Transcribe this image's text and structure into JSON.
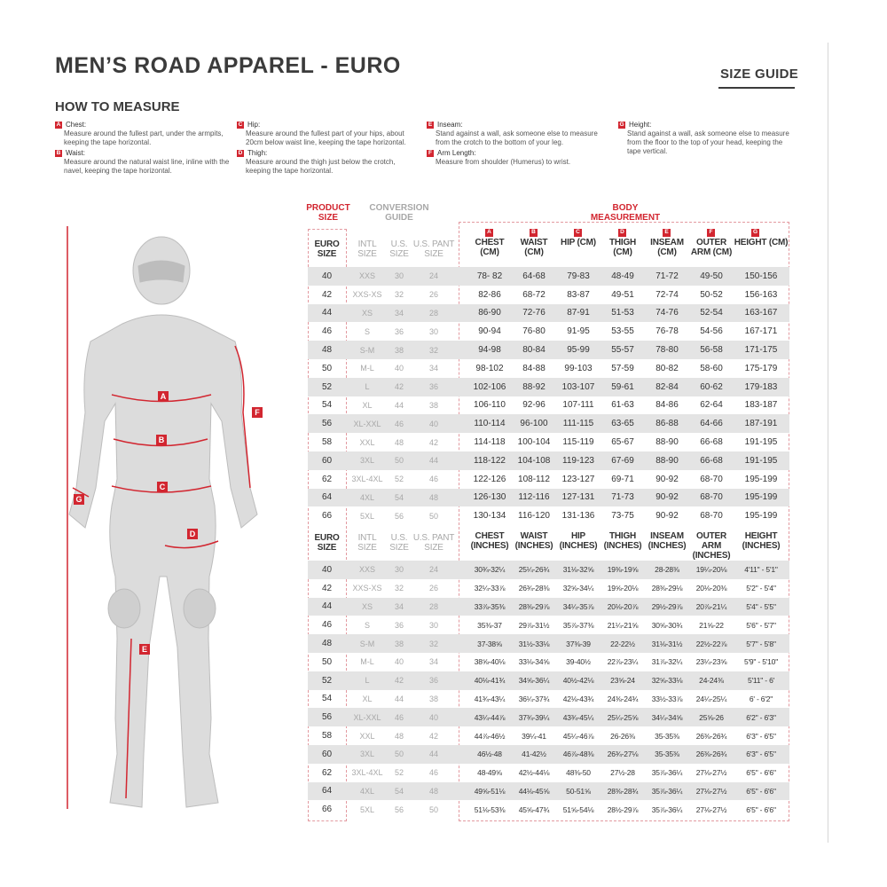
{
  "header": {
    "title": "MEN’S ROAD APPAREL - EURO",
    "size_guide": "SIZE GUIDE"
  },
  "how_to": {
    "title": "HOW TO MEASURE",
    "items": [
      {
        "letter": "A",
        "label": "Chest:",
        "text": "Measure around the fullest part, under the armpits, keeping the tape horizontal."
      },
      {
        "letter": "B",
        "label": "Waist:",
        "text": "Measure around the natural waist line, inline with the navel, keeping the tape horizontal."
      },
      {
        "letter": "C",
        "label": "Hip:",
        "text": "Measure around the fullest part of your hips, about 20cm below waist line, keeping the tape horizontal."
      },
      {
        "letter": "D",
        "label": "Thigh:",
        "text": "Measure around the thigh just below the crotch, keeping the tape horizontal."
      },
      {
        "letter": "E",
        "label": "Inseam:",
        "text": "Stand against a wall, ask someone else to measure from the crotch to the bottom of your leg."
      },
      {
        "letter": "F",
        "label": "Arm Length:",
        "text": "Measure from shoulder (Humerus) to wrist."
      },
      {
        "letter": "G",
        "label": "Height:",
        "text": "Stand against a wall, ask someone else to measure from the floor to the top of your head, keeping the tape vertical."
      }
    ]
  },
  "table": {
    "group_headers": {
      "product": "PRODUCT SIZE",
      "conversion": "CONVERSION GUIDE",
      "body": "BODY MEASUREMENT"
    },
    "accent_color": "#d22630",
    "cm_headers": [
      "EURO SIZE",
      "INTL SIZE",
      "U.S. SIZE",
      "U.S. PANT SIZE",
      "CHEST (CM)",
      "WAIST (CM)",
      "HIP (CM)",
      "THIGH (CM)",
      "INSEAM (CM)",
      "OUTER ARM (CM)",
      "HEIGHT (CM)"
    ],
    "in_headers": [
      "EURO SIZE",
      "INTL SIZE",
      "U.S. SIZE",
      "U.S. PANT SIZE",
      "CHEST (INCHES)",
      "WAIST (INCHES)",
      "HIP (INCHES)",
      "THIGH (INCHES)",
      "INSEAM (INCHES)",
      "OUTER ARM (INCHES)",
      "HEIGHT (INCHES)"
    ],
    "letters": [
      "A",
      "B",
      "C",
      "D",
      "E",
      "F",
      "G"
    ],
    "cm_rows": [
      [
        "40",
        "XXS",
        "30",
        "24",
        "78- 82",
        "64-68",
        "79-83",
        "48-49",
        "71-72",
        "49-50",
        "150-156"
      ],
      [
        "42",
        "XXS-XS",
        "32",
        "26",
        "82-86",
        "68-72",
        "83-87",
        "49-51",
        "72-74",
        "50-52",
        "156-163"
      ],
      [
        "44",
        "XS",
        "34",
        "28",
        "86-90",
        "72-76",
        "87-91",
        "51-53",
        "74-76",
        "52-54",
        "163-167"
      ],
      [
        "46",
        "S",
        "36",
        "30",
        "90-94",
        "76-80",
        "91-95",
        "53-55",
        "76-78",
        "54-56",
        "167-171"
      ],
      [
        "48",
        "S-M",
        "38",
        "32",
        "94-98",
        "80-84",
        "95-99",
        "55-57",
        "78-80",
        "56-58",
        "171-175"
      ],
      [
        "50",
        "M-L",
        "40",
        "34",
        "98-102",
        "84-88",
        "99-103",
        "57-59",
        "80-82",
        "58-60",
        "175-179"
      ],
      [
        "52",
        "L",
        "42",
        "36",
        "102-106",
        "88-92",
        "103-107",
        "59-61",
        "82-84",
        "60-62",
        "179-183"
      ],
      [
        "54",
        "XL",
        "44",
        "38",
        "106-110",
        "92-96",
        "107-111",
        "61-63",
        "84-86",
        "62-64",
        "183-187"
      ],
      [
        "56",
        "XL-XXL",
        "46",
        "40",
        "110-114",
        "96-100",
        "111-115",
        "63-65",
        "86-88",
        "64-66",
        "187-191"
      ],
      [
        "58",
        "XXL",
        "48",
        "42",
        "114-118",
        "100-104",
        "115-119",
        "65-67",
        "88-90",
        "66-68",
        "191-195"
      ],
      [
        "60",
        "3XL",
        "50",
        "44",
        "118-122",
        "104-108",
        "119-123",
        "67-69",
        "88-90",
        "66-68",
        "191-195"
      ],
      [
        "62",
        "3XL-4XL",
        "52",
        "46",
        "122-126",
        "108-112",
        "123-127",
        "69-71",
        "90-92",
        "68-70",
        "195-199"
      ],
      [
        "64",
        "4XL",
        "54",
        "48",
        "126-130",
        "112-116",
        "127-131",
        "71-73",
        "90-92",
        "68-70",
        "195-199"
      ],
      [
        "66",
        "5XL",
        "56",
        "50",
        "130-134",
        "116-120",
        "131-136",
        "73-75",
        "90-92",
        "68-70",
        "195-199"
      ]
    ],
    "in_rows": [
      [
        "40",
        "XXS",
        "30",
        "24",
        "30¾-32¼",
        "25¼-26¾",
        "31⅛-32⅝",
        "19⅜-19⅝",
        "28-28⅜",
        "19¼-20⅛",
        "4'11\" - 5'1\""
      ],
      [
        "42",
        "XXS-XS",
        "32",
        "26",
        "32¼-33⅞",
        "26¾-28⅜",
        "32⅝-34¼",
        "19⅝-20⅛",
        "28⅜-29⅛",
        "20⅛-20⅜",
        "5'2\" - 5'4\""
      ],
      [
        "44",
        "XS",
        "34",
        "28",
        "33⅞-35⅜",
        "28⅜-29⅞",
        "34¼-35⅞",
        "20⅛-20⅞",
        "29½-29⅞",
        "20⅞-21¼",
        "5'4\" - 5'5\""
      ],
      [
        "46",
        "S",
        "36",
        "30",
        "35⅜-37",
        "29⅞-31½",
        "35⅞-37⅜",
        "21¼-21⅝",
        "30⅝-30¾",
        "21⅝-22",
        "5'6\" - 5'7\""
      ],
      [
        "48",
        "S-M",
        "38",
        "32",
        "37-38⅝",
        "31½-33⅛",
        "37⅜-39",
        "22-22½",
        "31⅛-31½",
        "22½-22⅞",
        "5'7\" - 5'8\""
      ],
      [
        "50",
        "M-L",
        "40",
        "34",
        "38⅝-40⅛",
        "33⅛-34⅝",
        "39-40½",
        "22⅞-23¼",
        "31⅞-32¼",
        "23¼-23⅝",
        "5'9\" - 5'10\""
      ],
      [
        "52",
        "L",
        "42",
        "36",
        "40⅛-41¾",
        "34⅝-36¼",
        "40½-42⅛",
        "23⅝-24",
        "32⅝-33⅛",
        "24-24⅜",
        "5'11\" - 6'"
      ],
      [
        "54",
        "XL",
        "44",
        "38",
        "41¾-43¼",
        "36¼-37¾",
        "42⅛-43¾",
        "24⅜-24¾",
        "33½-33⅞",
        "24¼-25¼",
        "6' - 6'2\""
      ],
      [
        "56",
        "XL-XXL",
        "46",
        "40",
        "43¼-44⅞",
        "37¾-39¼",
        "43¾-45¼",
        "25¼-25⅝",
        "34¼-34⅝",
        "25⅝-26",
        "6'2\" - 6'3\""
      ],
      [
        "58",
        "XXL",
        "48",
        "42",
        "44⅞-46½",
        "39¼-41",
        "45¼-46⅞",
        "26-26⅜",
        "35-35⅜",
        "26⅜-26¾",
        "6'3\" - 6'5\""
      ],
      [
        "60",
        "3XL",
        "50",
        "44",
        "46½-48",
        "41-42½",
        "46⅞-48⅜",
        "26¾-27⅛",
        "35-35⅜",
        "26⅜-26¾",
        "6'3\" - 6'5\""
      ],
      [
        "62",
        "3XL-4XL",
        "52",
        "46",
        "48-49⅝",
        "42½-44⅛",
        "48⅜-50",
        "27½-28",
        "35⅞-36¼",
        "27⅛-27½",
        "6'5\" - 6'6\""
      ],
      [
        "64",
        "4XL",
        "54",
        "48",
        "49⅝-51⅛",
        "44⅛-45⅝",
        "50-51⅝",
        "28⅜-28¾",
        "35⅞-36¼",
        "27⅛-27½",
        "6'5\" - 6'6\""
      ],
      [
        "66",
        "5XL",
        "56",
        "50",
        "51⅛-53⅜",
        "45⅝-47¾",
        "51⅝-54⅛",
        "28½-29⅞",
        "35⅞-36¼",
        "27⅛-27½",
        "6'5\" - 6'6\""
      ]
    ]
  },
  "figure": {
    "labels": [
      "A",
      "B",
      "C",
      "D",
      "E",
      "F",
      "G"
    ]
  }
}
